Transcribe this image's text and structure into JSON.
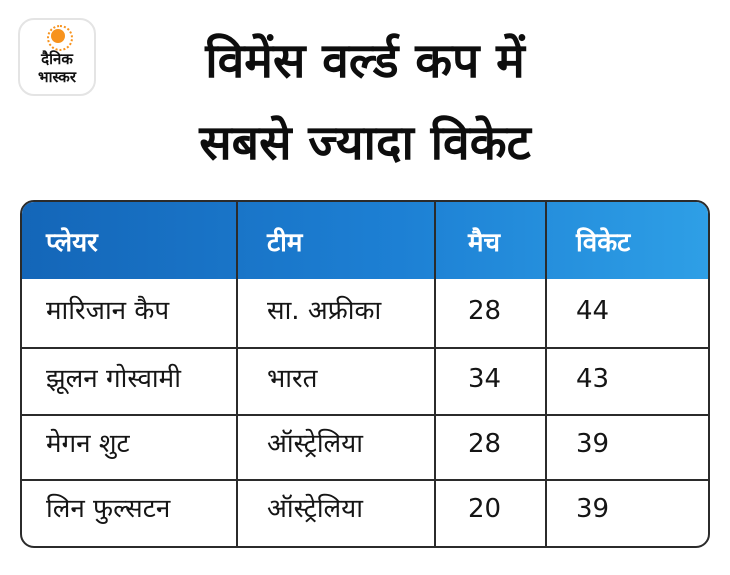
{
  "brand": {
    "line1": "दैनिक",
    "line2": "भास्कर"
  },
  "title": {
    "line1": "विमेंस वर्ल्ड कप में",
    "line2": "सबसे ज्यादा विकेट"
  },
  "table": {
    "headers": [
      "प्लेयर",
      "टीम",
      "मैच",
      "विकेट"
    ],
    "rows": [
      [
        "मारिजान कैप",
        "सा. अफ्रीका",
        "28",
        "44"
      ],
      [
        "झूलन गोस्वामी",
        "भारत",
        "34",
        "43"
      ],
      [
        "मेगन शुट",
        "ऑस्ट्रेलिया",
        "28",
        "39"
      ],
      [
        "लिन फुल्सटन",
        "ऑस्ट्रेलिया",
        "20",
        "39"
      ]
    ]
  },
  "colors": {
    "header_start": "#1466b8",
    "header_end": "#2e9fe6",
    "brand_orange": "#f7931e"
  }
}
